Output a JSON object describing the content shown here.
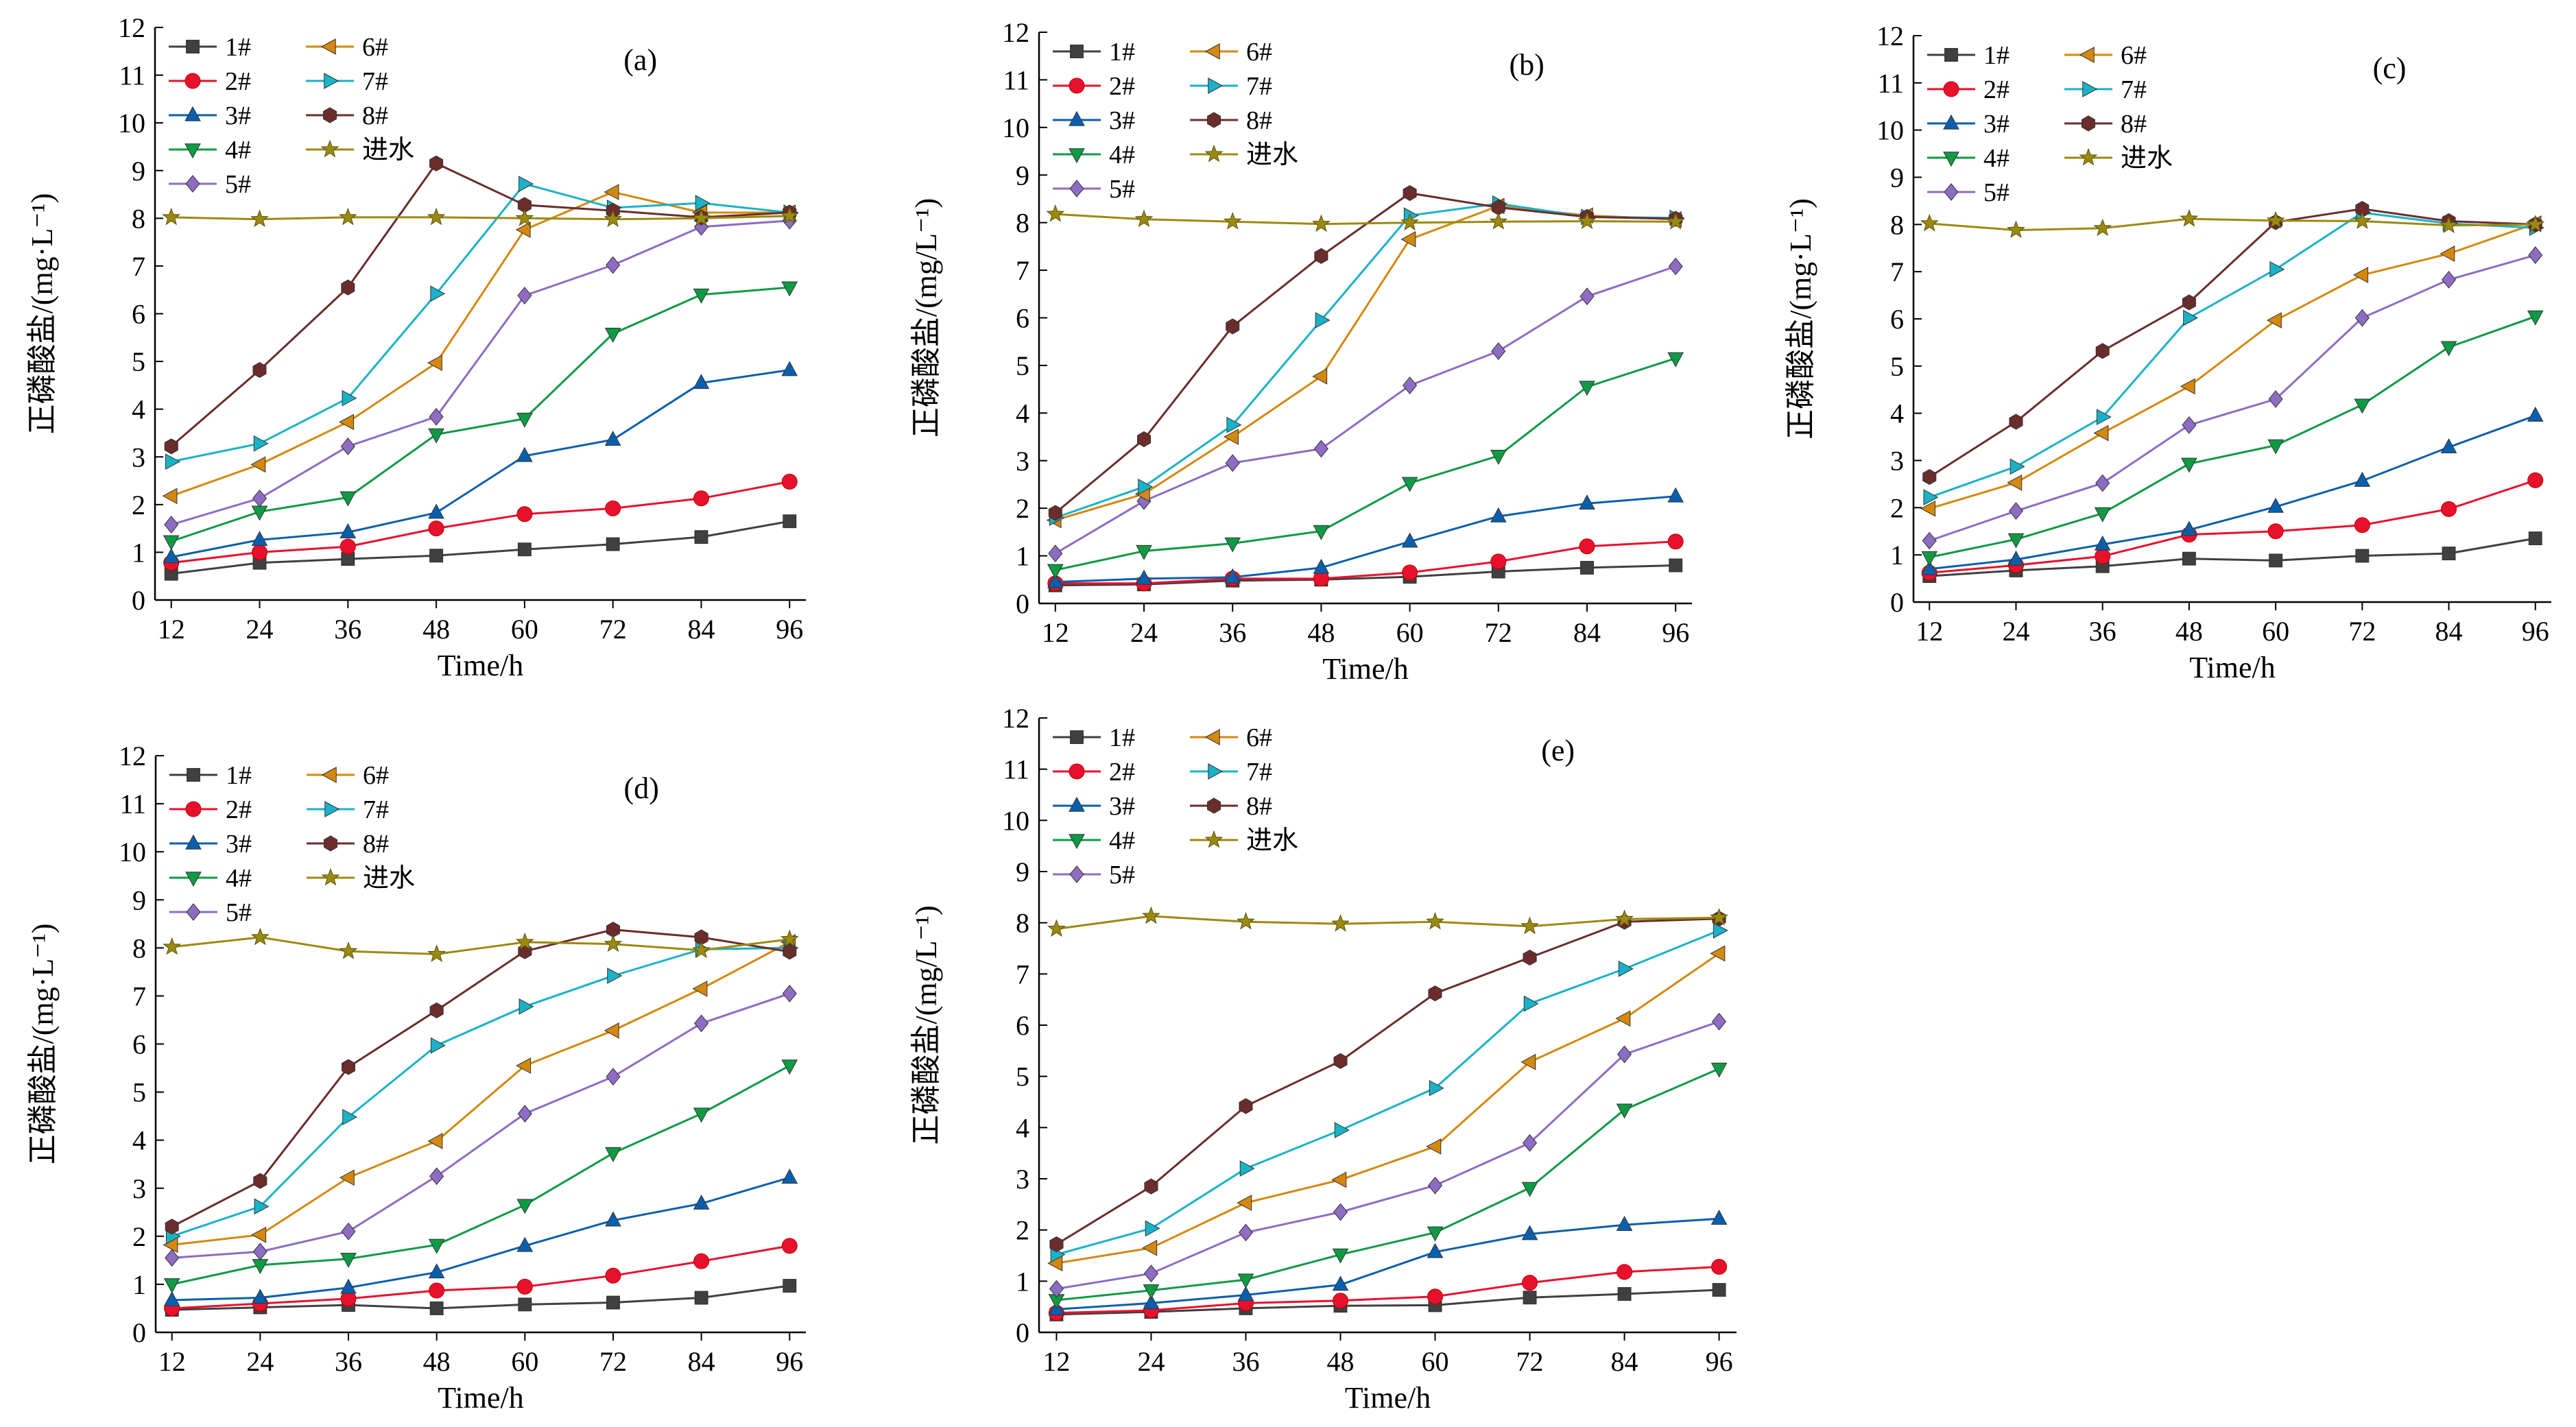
{
  "series_styles": [
    {
      "name": "1#",
      "color": "#404040",
      "marker": "square"
    },
    {
      "name": "2#",
      "color": "#e8112d",
      "marker": "circle"
    },
    {
      "name": "3#",
      "color": "#0a5fad",
      "marker": "triangle-up"
    },
    {
      "name": "4#",
      "color": "#0f9a44",
      "marker": "triangle-down"
    },
    {
      "name": "5#",
      "color": "#8e6cc3",
      "marker": "diamond"
    },
    {
      "name": "6#",
      "color": "#d4880e",
      "marker": "triangle-left"
    },
    {
      "name": "7#",
      "color": "#1ab2c7",
      "marker": "triangle-right"
    },
    {
      "name": "8#",
      "color": "#6b2c2c",
      "marker": "hexagon"
    },
    {
      "name": "进水",
      "color": "#9a8a10",
      "marker": "star"
    }
  ],
  "chart_data": [
    {
      "type": "line",
      "panel_label": "(a)",
      "xlabel": "Time/h",
      "ylabel": "正磷酸盐/(mg·L⁻¹)",
      "x": [
        12,
        24,
        36,
        48,
        60,
        72,
        84,
        96
      ],
      "xlim": [
        12,
        96
      ],
      "ylim": [
        0,
        12
      ],
      "yticks": [
        0,
        1,
        2,
        3,
        4,
        5,
        6,
        7,
        8,
        9,
        10,
        11,
        12
      ],
      "series": [
        {
          "name": "1#",
          "values": [
            0.55,
            0.78,
            0.86,
            0.93,
            1.06,
            1.17,
            1.32,
            1.65
          ]
        },
        {
          "name": "2#",
          "values": [
            0.78,
            1.0,
            1.12,
            1.5,
            1.8,
            1.92,
            2.13,
            2.48
          ]
        },
        {
          "name": "3#",
          "values": [
            0.9,
            1.26,
            1.42,
            1.83,
            3.02,
            3.36,
            4.55,
            4.82
          ]
        },
        {
          "name": "4#",
          "values": [
            1.23,
            1.85,
            2.15,
            3.47,
            3.8,
            5.58,
            6.4,
            6.55
          ]
        },
        {
          "name": "5#",
          "values": [
            1.58,
            2.13,
            3.22,
            3.84,
            6.38,
            7.02,
            7.82,
            7.95
          ]
        },
        {
          "name": "6#",
          "values": [
            2.18,
            2.84,
            3.73,
            4.97,
            7.76,
            8.55,
            8.12,
            8.12
          ]
        },
        {
          "name": "7#",
          "values": [
            2.9,
            3.28,
            4.23,
            6.42,
            8.72,
            8.22,
            8.32,
            8.12
          ]
        },
        {
          "name": "8#",
          "values": [
            3.22,
            4.82,
            6.55,
            9.15,
            8.28,
            8.16,
            8.02,
            8.12
          ]
        },
        {
          "name": "进水",
          "values": [
            8.02,
            7.98,
            8.02,
            8.02,
            8.0,
            7.98,
            8.0,
            8.05
          ]
        }
      ]
    },
    {
      "type": "line",
      "panel_label": "(b)",
      "xlabel": "Time/h",
      "ylabel": "正磷酸盐/(mg/L⁻¹)",
      "x": [
        12,
        24,
        36,
        48,
        60,
        72,
        84,
        96
      ],
      "xlim": [
        12,
        96
      ],
      "ylim": [
        0,
        12
      ],
      "yticks": [
        0,
        1,
        2,
        3,
        4,
        5,
        6,
        7,
        8,
        9,
        10,
        11,
        12
      ],
      "series": [
        {
          "name": "1#",
          "values": [
            0.38,
            0.4,
            0.48,
            0.5,
            0.56,
            0.67,
            0.75,
            0.8
          ]
        },
        {
          "name": "2#",
          "values": [
            0.42,
            0.42,
            0.52,
            0.52,
            0.65,
            0.88,
            1.2,
            1.3
          ]
        },
        {
          "name": "3#",
          "values": [
            0.45,
            0.52,
            0.55,
            0.75,
            1.3,
            1.83,
            2.1,
            2.25
          ]
        },
        {
          "name": "4#",
          "values": [
            0.7,
            1.1,
            1.26,
            1.52,
            2.53,
            3.1,
            4.55,
            5.15
          ]
        },
        {
          "name": "5#",
          "values": [
            1.05,
            2.15,
            2.95,
            3.25,
            4.58,
            5.3,
            6.45,
            7.08
          ]
        },
        {
          "name": "6#",
          "values": [
            1.75,
            2.3,
            3.5,
            4.77,
            7.65,
            8.35,
            8.15,
            8.07
          ]
        },
        {
          "name": "7#",
          "values": [
            1.8,
            2.45,
            3.75,
            5.95,
            8.15,
            8.4,
            8.12,
            8.1
          ]
        },
        {
          "name": "8#",
          "values": [
            1.9,
            3.45,
            5.82,
            7.3,
            8.62,
            8.32,
            8.12,
            8.08
          ]
        },
        {
          "name": "进水",
          "values": [
            8.18,
            8.07,
            8.02,
            7.97,
            8.0,
            8.02,
            8.03,
            8.02
          ]
        }
      ]
    },
    {
      "type": "line",
      "panel_label": "(c)",
      "xlabel": "Time/h",
      "ylabel": "正磷酸盐/(mg·L⁻¹)",
      "x": [
        12,
        24,
        36,
        48,
        60,
        72,
        84,
        96
      ],
      "xlim": [
        12,
        96
      ],
      "ylim": [
        0,
        12
      ],
      "yticks": [
        0,
        1,
        2,
        3,
        4,
        5,
        6,
        7,
        8,
        9,
        10,
        11,
        12
      ],
      "series": [
        {
          "name": "1#",
          "values": [
            0.55,
            0.67,
            0.76,
            0.92,
            0.88,
            0.98,
            1.03,
            1.35
          ]
        },
        {
          "name": "2#",
          "values": [
            0.62,
            0.78,
            0.97,
            1.43,
            1.5,
            1.63,
            1.97,
            2.58
          ]
        },
        {
          "name": "3#",
          "values": [
            0.7,
            0.9,
            1.22,
            1.53,
            2.02,
            2.57,
            3.28,
            3.95
          ]
        },
        {
          "name": "4#",
          "values": [
            0.95,
            1.33,
            1.88,
            2.93,
            3.32,
            4.18,
            5.4,
            6.05
          ]
        },
        {
          "name": "5#",
          "values": [
            1.3,
            1.93,
            2.52,
            3.75,
            4.3,
            6.02,
            6.83,
            7.35
          ]
        },
        {
          "name": "6#",
          "values": [
            1.98,
            2.53,
            3.58,
            4.57,
            5.97,
            6.93,
            7.38,
            8.02
          ]
        },
        {
          "name": "7#",
          "values": [
            2.22,
            2.87,
            3.92,
            6.02,
            7.05,
            8.25,
            8.02,
            7.93
          ]
        },
        {
          "name": "8#",
          "values": [
            2.65,
            3.82,
            5.32,
            6.35,
            8.05,
            8.33,
            8.07,
            8.0
          ]
        },
        {
          "name": "进水",
          "values": [
            8.02,
            7.88,
            7.92,
            8.12,
            8.08,
            8.07,
            7.98,
            8.0
          ]
        }
      ]
    },
    {
      "type": "line",
      "panel_label": "(d)",
      "xlabel": "Time/h",
      "ylabel": "正磷酸盐/(mg·L⁻¹)",
      "x": [
        12,
        24,
        36,
        48,
        60,
        72,
        84,
        96
      ],
      "xlim": [
        12,
        96
      ],
      "ylim": [
        0,
        12
      ],
      "yticks": [
        0,
        1,
        2,
        3,
        4,
        5,
        6,
        7,
        8,
        9,
        10,
        11,
        12
      ],
      "series": [
        {
          "name": "1#",
          "values": [
            0.47,
            0.52,
            0.57,
            0.5,
            0.58,
            0.62,
            0.72,
            0.97
          ]
        },
        {
          "name": "2#",
          "values": [
            0.5,
            0.6,
            0.7,
            0.87,
            0.95,
            1.18,
            1.48,
            1.8
          ]
        },
        {
          "name": "3#",
          "values": [
            0.67,
            0.72,
            0.93,
            1.25,
            1.8,
            2.33,
            2.68,
            3.22
          ]
        },
        {
          "name": "4#",
          "values": [
            1.0,
            1.4,
            1.53,
            1.82,
            2.65,
            3.73,
            4.55,
            5.55
          ]
        },
        {
          "name": "5#",
          "values": [
            1.55,
            1.68,
            2.1,
            3.25,
            4.55,
            5.32,
            6.43,
            7.05
          ]
        },
        {
          "name": "6#",
          "values": [
            1.82,
            2.03,
            3.22,
            3.98,
            5.55,
            6.28,
            7.15,
            8.12
          ]
        },
        {
          "name": "7#",
          "values": [
            2.0,
            2.62,
            4.48,
            5.97,
            6.78,
            7.42,
            7.97,
            8.0
          ]
        },
        {
          "name": "8#",
          "values": [
            2.2,
            3.15,
            5.52,
            6.7,
            7.93,
            8.38,
            8.22,
            7.92
          ]
        },
        {
          "name": "进水",
          "values": [
            8.02,
            8.22,
            7.93,
            7.87,
            8.12,
            8.08,
            7.95,
            8.18
          ]
        }
      ]
    },
    {
      "type": "line",
      "panel_label": "(e)",
      "xlabel": "Time/h",
      "ylabel": "正磷酸盐/(mg/L⁻¹)",
      "x": [
        12,
        24,
        36,
        48,
        60,
        72,
        84,
        96
      ],
      "xlim": [
        12,
        96
      ],
      "ylim": [
        0,
        12
      ],
      "yticks": [
        0,
        1,
        2,
        3,
        4,
        5,
        6,
        7,
        8,
        9,
        10,
        11,
        12
      ],
      "series": [
        {
          "name": "1#",
          "values": [
            0.35,
            0.4,
            0.47,
            0.52,
            0.53,
            0.68,
            0.75,
            0.83
          ]
        },
        {
          "name": "2#",
          "values": [
            0.38,
            0.43,
            0.57,
            0.62,
            0.7,
            0.97,
            1.18,
            1.28
          ]
        },
        {
          "name": "3#",
          "values": [
            0.45,
            0.57,
            0.73,
            0.93,
            1.57,
            1.92,
            2.1,
            2.22
          ]
        },
        {
          "name": "4#",
          "values": [
            0.63,
            0.82,
            1.03,
            1.52,
            1.95,
            2.82,
            4.35,
            5.15
          ]
        },
        {
          "name": "5#",
          "values": [
            0.85,
            1.15,
            1.95,
            2.35,
            2.87,
            3.7,
            5.43,
            6.07
          ]
        },
        {
          "name": "6#",
          "values": [
            1.35,
            1.65,
            2.53,
            2.98,
            3.63,
            5.28,
            6.13,
            7.4
          ]
        },
        {
          "name": "7#",
          "values": [
            1.52,
            2.03,
            3.2,
            3.95,
            4.77,
            6.42,
            7.1,
            7.85
          ]
        },
        {
          "name": "8#",
          "values": [
            1.72,
            2.85,
            4.42,
            5.3,
            6.62,
            7.32,
            8.02,
            8.08
          ]
        },
        {
          "name": "进水",
          "values": [
            7.88,
            8.13,
            8.02,
            7.98,
            8.02,
            7.93,
            8.07,
            8.1
          ]
        }
      ]
    }
  ]
}
